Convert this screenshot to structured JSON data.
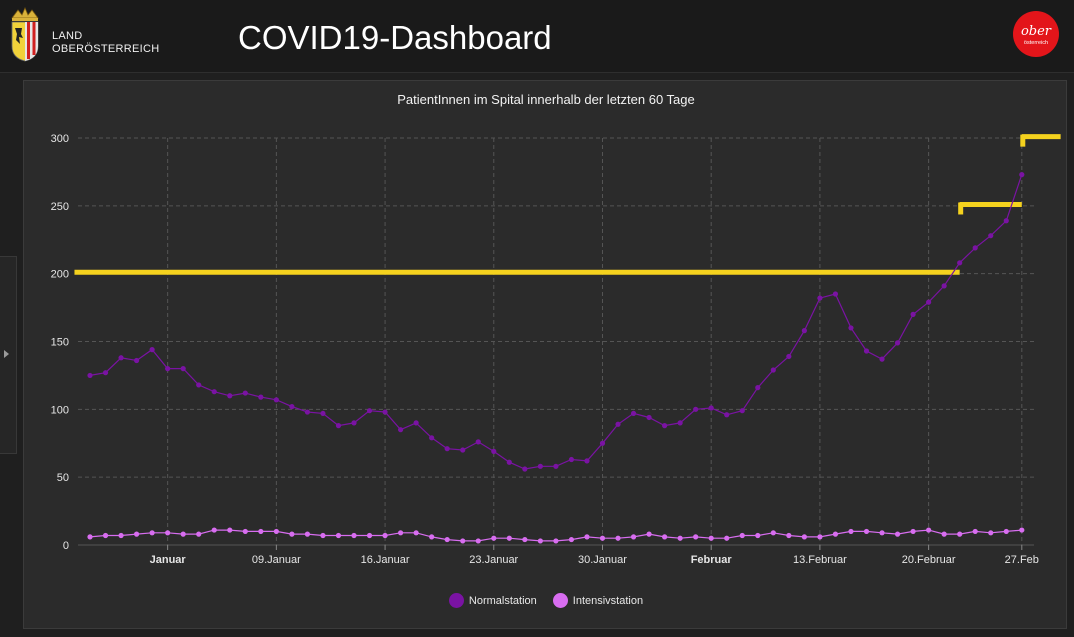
{
  "header": {
    "land_line1": "LAND",
    "land_line2": "OBERÖSTERREICH",
    "title": "COVID19-Dashboard",
    "logo_text_top": "ober",
    "logo_text_bottom": "österreich",
    "logo_color": "#e3151a"
  },
  "colors": {
    "normal": "#7a13a3",
    "intensiv": "#d86df0",
    "annotation": "#f5d21e",
    "grid": "#555555"
  },
  "chart_data": {
    "type": "line",
    "title": "PatientInnen im Spital innerhalb der letzten 60 Tage",
    "ylim": [
      0,
      300
    ],
    "yticks": [
      0,
      50,
      100,
      150,
      200,
      250,
      300
    ],
    "grid": true,
    "legend": "bottom-center",
    "x_ticks": [
      {
        "label": "Januar",
        "index": 5,
        "bold": true
      },
      {
        "label": "09.Januar",
        "index": 12,
        "bold": false
      },
      {
        "label": "16.Januar",
        "index": 19,
        "bold": false
      },
      {
        "label": "23.Januar",
        "index": 26,
        "bold": false
      },
      {
        "label": "30.Januar",
        "index": 33,
        "bold": false
      },
      {
        "label": "Februar",
        "index": 40,
        "bold": true
      },
      {
        "label": "13.Februar",
        "index": 47,
        "bold": false
      },
      {
        "label": "20.Februar",
        "index": 54,
        "bold": false
      },
      {
        "label": "27.Feb",
        "index": 60,
        "bold": false
      }
    ],
    "series": [
      {
        "name": "Normalstation",
        "values": [
          125,
          127,
          138,
          136,
          144,
          130,
          130,
          118,
          113,
          110,
          112,
          109,
          107,
          102,
          98,
          97,
          88,
          90,
          99,
          98,
          85,
          90,
          79,
          71,
          70,
          76,
          69,
          61,
          56,
          58,
          58,
          63,
          62,
          75,
          89,
          97,
          94,
          88,
          90,
          100,
          101,
          96,
          99,
          116,
          129,
          139,
          158,
          182,
          185,
          160,
          143,
          137,
          149,
          170,
          179,
          191,
          208,
          219,
          228,
          239,
          273
        ]
      },
      {
        "name": "Intensivstation",
        "values": [
          6,
          7,
          7,
          8,
          9,
          9,
          8,
          8,
          11,
          11,
          10,
          10,
          10,
          8,
          8,
          7,
          7,
          7,
          7,
          7,
          9,
          9,
          6,
          4,
          3,
          3,
          5,
          5,
          4,
          3,
          3,
          4,
          6,
          5,
          5,
          6,
          8,
          6,
          5,
          6,
          5,
          5,
          7,
          7,
          9,
          7,
          6,
          6,
          8,
          10,
          10,
          9,
          8,
          10,
          11,
          8,
          8,
          10,
          9,
          10,
          11
        ]
      }
    ],
    "annotations": [
      {
        "type": "step-line",
        "y": 201,
        "from_index": -1,
        "to_index": 56
      },
      {
        "type": "step-line",
        "y": 251,
        "from_index": 56,
        "to_index": 60
      },
      {
        "type": "step-line",
        "y": 301,
        "from_index": 60,
        "to_index": 62.5
      }
    ]
  }
}
